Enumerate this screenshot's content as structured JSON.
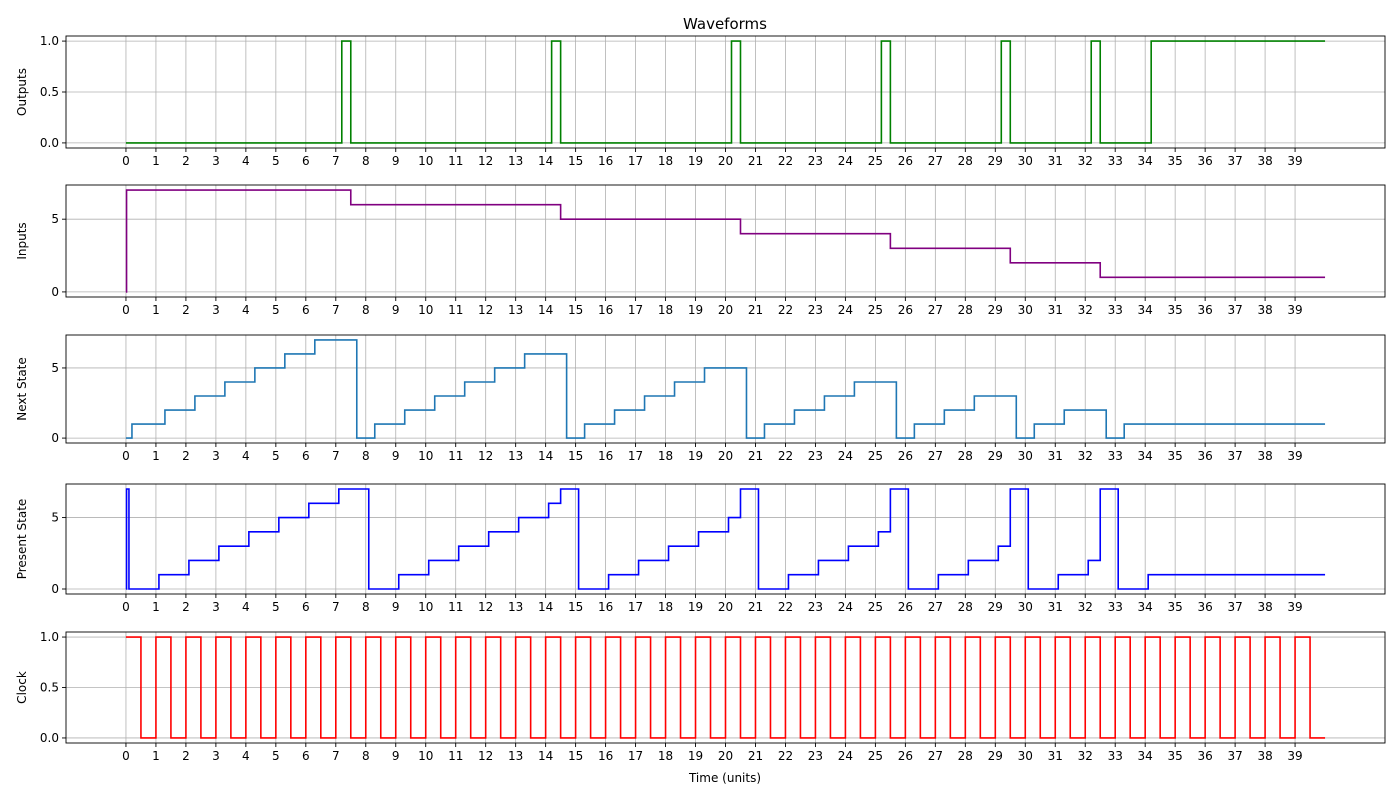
{
  "chart_data": {
    "type": "line",
    "title": "Waveforms",
    "xlabel": "Time (units)",
    "xlim": [
      -2,
      42
    ],
    "xticks": [
      0,
      1,
      2,
      3,
      4,
      5,
      6,
      7,
      8,
      9,
      10,
      11,
      12,
      13,
      14,
      15,
      16,
      17,
      18,
      19,
      20,
      21,
      22,
      23,
      24,
      25,
      26,
      27,
      28,
      29,
      30,
      31,
      32,
      33,
      34,
      35,
      36,
      37,
      38,
      39
    ],
    "grid": true,
    "step": "post",
    "panels": [
      {
        "name": "Outputs",
        "ylabel": "Outputs",
        "color": "#008000",
        "ylim": [
          -0.05,
          1.05
        ],
        "yticks": [
          0,
          0.5,
          1
        ],
        "ytick_labels": [
          "0.0",
          "0.5",
          "1.0"
        ],
        "x": [
          0,
          7.2,
          7.5,
          14.2,
          14.5,
          20.2,
          20.5,
          25.2,
          25.5,
          29.2,
          29.5,
          32.2,
          32.5,
          34.2,
          40
        ],
        "y": [
          0,
          1,
          0,
          1,
          0,
          1,
          0,
          1,
          0,
          1,
          0,
          1,
          0,
          1,
          1
        ]
      },
      {
        "name": "Inputs",
        "ylabel": "Inputs",
        "color": "#800080",
        "ylim": [
          -0.35,
          7.35
        ],
        "yticks": [
          0,
          5
        ],
        "ytick_labels": [
          "0",
          "5"
        ],
        "x": [
          0,
          0.02,
          7.5,
          14.5,
          20.5,
          25.5,
          29.5,
          32.5,
          40
        ],
        "y": [
          0,
          7,
          6,
          5,
          4,
          3,
          2,
          1,
          1
        ]
      },
      {
        "name": "Next State",
        "ylabel": "Next State",
        "color": "#1f77b4",
        "ylim": [
          -0.35,
          7.35
        ],
        "yticks": [
          0,
          5
        ],
        "ytick_labels": [
          "0",
          "5"
        ],
        "x": [
          0,
          0.2,
          1.3,
          2.3,
          3.3,
          4.3,
          5.3,
          6.3,
          7.7,
          8.3,
          9.3,
          10.3,
          11.3,
          12.3,
          13.3,
          14.7,
          15.3,
          16.3,
          17.3,
          18.3,
          19.3,
          20.7,
          21.3,
          22.3,
          23.3,
          24.3,
          25.7,
          26.3,
          27.3,
          28.3,
          29.7,
          30.3,
          31.3,
          32.7,
          33.3,
          40
        ],
        "y": [
          0,
          1,
          2,
          3,
          4,
          5,
          6,
          7,
          0,
          1,
          2,
          3,
          4,
          5,
          6,
          0,
          1,
          2,
          3,
          4,
          5,
          0,
          1,
          2,
          3,
          4,
          0,
          1,
          2,
          3,
          0,
          1,
          2,
          0,
          1,
          1
        ]
      },
      {
        "name": "Present State",
        "ylabel": "Present State",
        "color": "#0000ff",
        "ylim": [
          -0.35,
          7.35
        ],
        "yticks": [
          0,
          5
        ],
        "ytick_labels": [
          "0",
          "5"
        ],
        "x": [
          0,
          0.02,
          0.1,
          1.1,
          2.1,
          3.1,
          4.1,
          5.1,
          6.1,
          7.1,
          8.1,
          9.1,
          10.1,
          11.1,
          12.1,
          13.1,
          14.1,
          14.5,
          15.1,
          16.1,
          17.1,
          18.1,
          19.1,
          20.1,
          20.5,
          21.1,
          22.1,
          23.1,
          24.1,
          25.1,
          25.5,
          26.1,
          27.1,
          28.1,
          29.1,
          29.5,
          30.1,
          31.1,
          32.1,
          32.5,
          33.1,
          34.1,
          40
        ],
        "y": [
          0,
          7,
          0,
          1,
          2,
          3,
          4,
          5,
          6,
          7,
          0,
          1,
          2,
          3,
          4,
          5,
          6,
          7,
          0,
          1,
          2,
          3,
          4,
          5,
          7,
          0,
          1,
          2,
          3,
          4,
          7,
          0,
          1,
          2,
          3,
          7,
          0,
          1,
          2,
          7,
          0,
          1,
          1
        ]
      },
      {
        "name": "Clock",
        "ylabel": "Clock",
        "color": "#ff0000",
        "ylim": [
          -0.05,
          1.05
        ],
        "yticks": [
          0,
          0.5,
          1
        ],
        "ytick_labels": [
          "0.0",
          "0.5",
          "1.0"
        ],
        "x": [
          0,
          0.5,
          1,
          1.5,
          2,
          2.5,
          3,
          3.5,
          4,
          4.5,
          5,
          5.5,
          6,
          6.5,
          7,
          7.5,
          8,
          8.5,
          9,
          9.5,
          10,
          10.5,
          11,
          11.5,
          12,
          12.5,
          13,
          13.5,
          14,
          14.5,
          15,
          15.5,
          16,
          16.5,
          17,
          17.5,
          18,
          18.5,
          19,
          19.5,
          20,
          20.5,
          21,
          21.5,
          22,
          22.5,
          23,
          23.5,
          24,
          24.5,
          25,
          25.5,
          26,
          26.5,
          27,
          27.5,
          28,
          28.5,
          29,
          29.5,
          30,
          30.5,
          31,
          31.5,
          32,
          32.5,
          33,
          33.5,
          34,
          34.5,
          35,
          35.5,
          36,
          36.5,
          37,
          37.5,
          38,
          38.5,
          39,
          39.5,
          40
        ],
        "y": [
          1,
          0,
          1,
          0,
          1,
          0,
          1,
          0,
          1,
          0,
          1,
          0,
          1,
          0,
          1,
          0,
          1,
          0,
          1,
          0,
          1,
          0,
          1,
          0,
          1,
          0,
          1,
          0,
          1,
          0,
          1,
          0,
          1,
          0,
          1,
          0,
          1,
          0,
          1,
          0,
          1,
          0,
          1,
          0,
          1,
          0,
          1,
          0,
          1,
          0,
          1,
          0,
          1,
          0,
          1,
          0,
          1,
          0,
          1,
          0,
          1,
          0,
          1,
          0,
          1,
          0,
          1,
          0,
          1,
          0,
          1,
          0,
          1,
          0,
          1,
          0,
          1,
          0,
          1,
          0,
          0
        ]
      }
    ]
  }
}
